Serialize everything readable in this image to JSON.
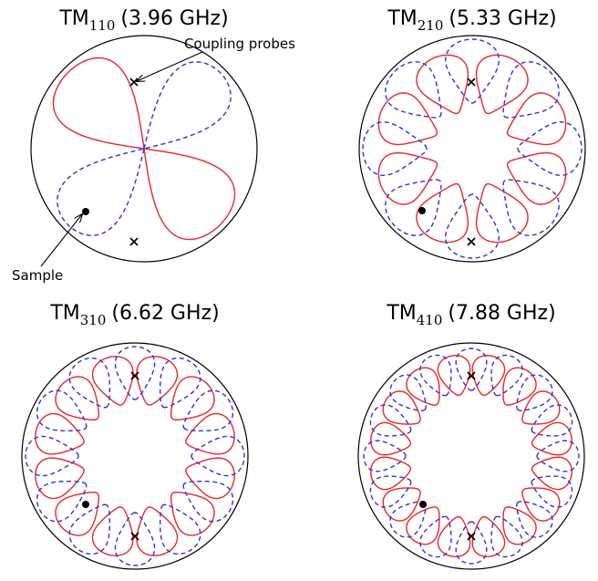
{
  "colors": {
    "outline": "#000000",
    "e_field": "#e8262a",
    "h_field": "#2e2ee8",
    "marker": "#000000"
  },
  "panels": [
    {
      "mode": "TM",
      "subscript": "110",
      "frequency": "(3.96 GHz)",
      "lobes": 2,
      "rot": 45,
      "sample_angle": 225
    },
    {
      "mode": "TM",
      "subscript": "210",
      "frequency": "(5.33 GHz)",
      "lobes": 4,
      "rot": 0,
      "sample_angle": 225
    },
    {
      "mode": "TM",
      "subscript": "310",
      "frequency": "(6.62 GHz)",
      "lobes": 6,
      "rot": 0,
      "sample_angle": 225
    },
    {
      "mode": "TM",
      "subscript": "410",
      "frequency": "(7.88 GHz)",
      "lobes": 8,
      "rot": 0,
      "sample_angle": 225
    }
  ],
  "annotations": {
    "probes_label": "Coupling probes",
    "sample_label": "Sample"
  }
}
